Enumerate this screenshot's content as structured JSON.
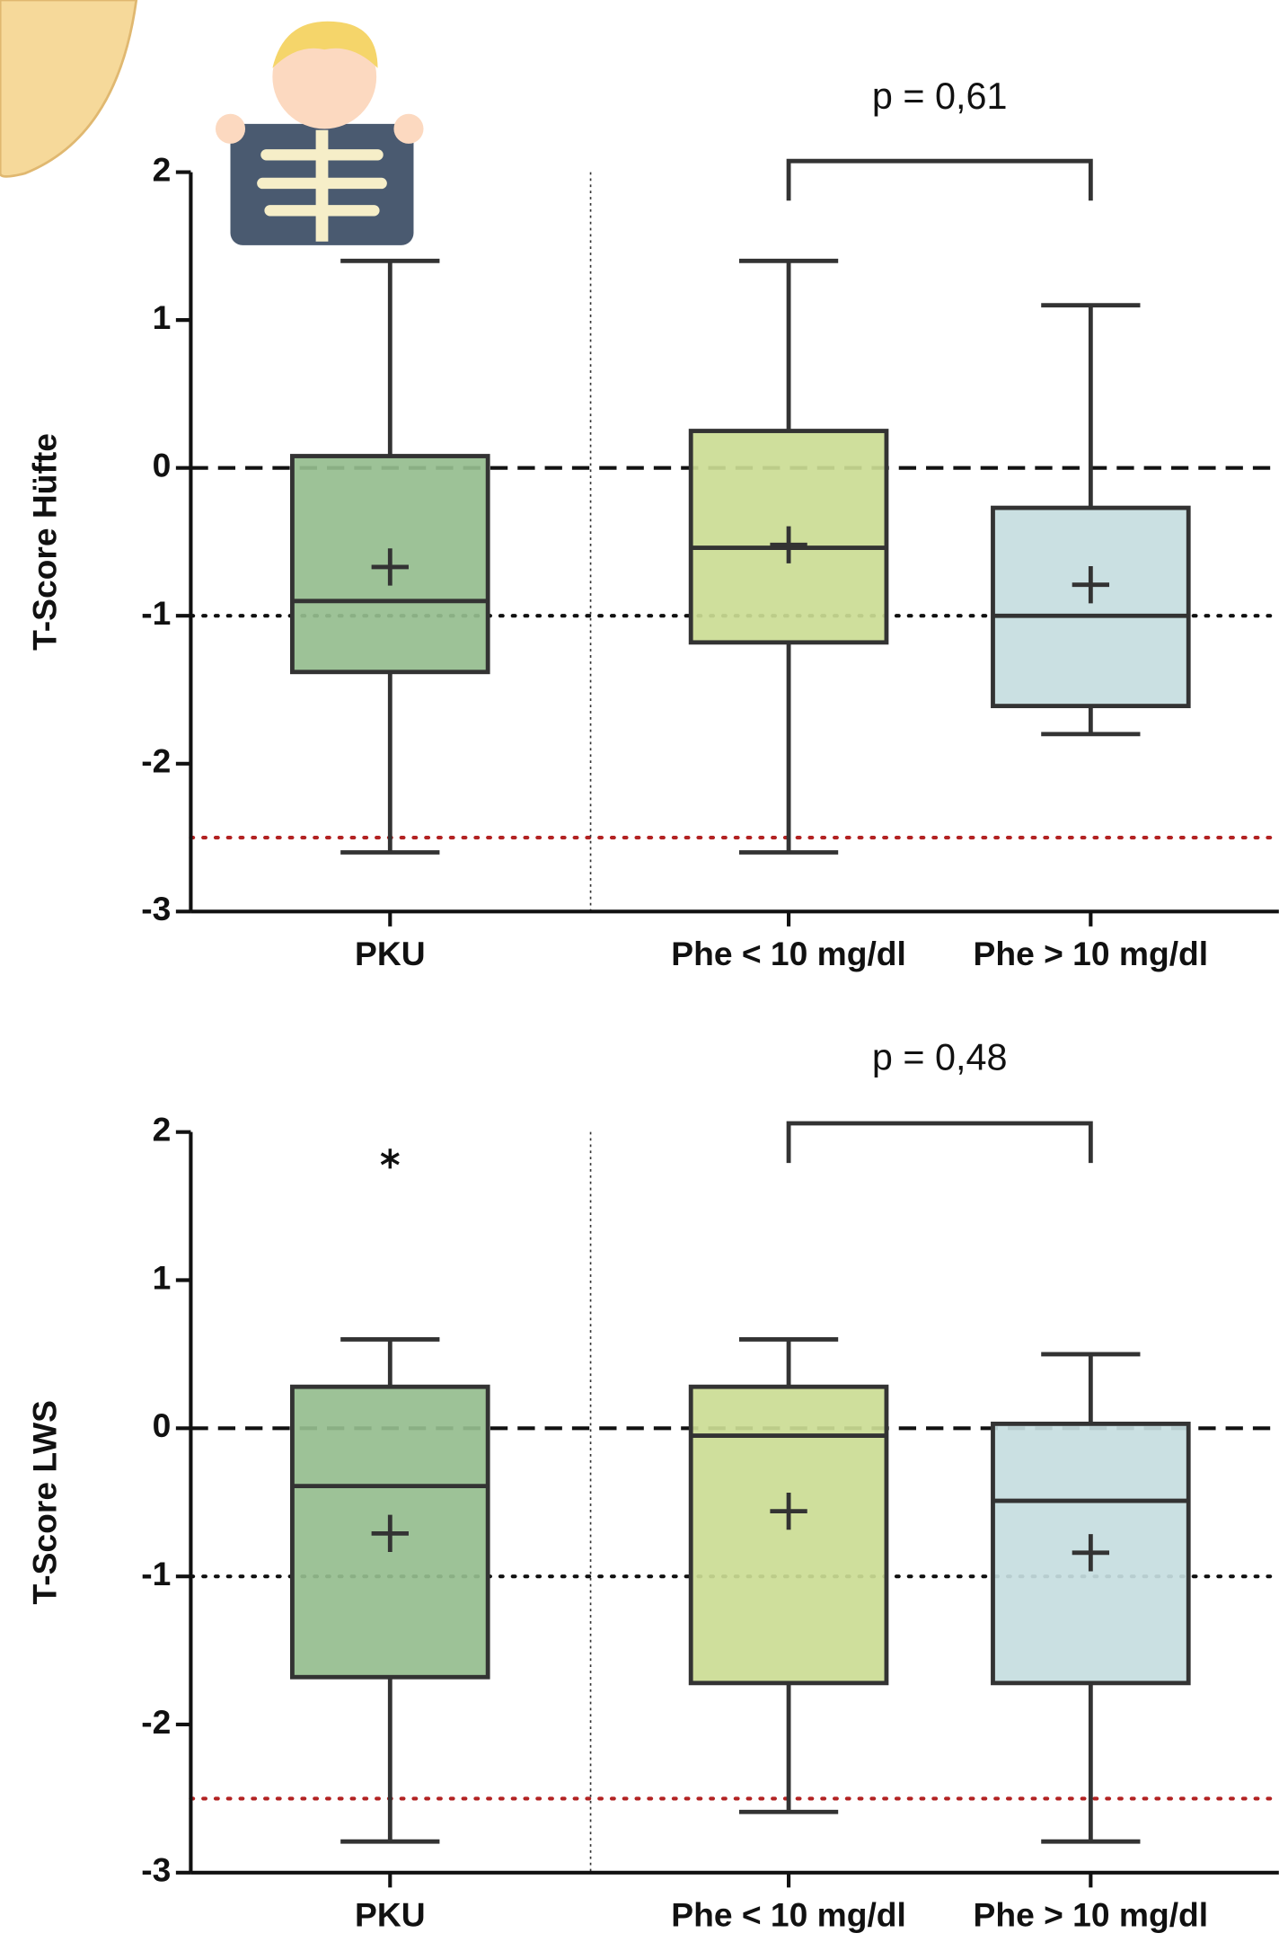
{
  "chart_data": [
    {
      "type": "box",
      "ylabel": "T-Score Hüfte",
      "annotation": "p = 0,61",
      "categories": [
        "PKU",
        "Phe < 10 mg/dl",
        "Phe > 10 mg/dl"
      ],
      "boxes": [
        {
          "min": -2.6,
          "q1": -1.38,
          "median": -0.9,
          "q3": 0.08,
          "max": 1.4,
          "mean": -0.67,
          "color": "#95bd8e"
        },
        {
          "min": -2.6,
          "q1": -1.18,
          "median": -0.54,
          "q3": 0.25,
          "max": 1.4,
          "mean": -0.52,
          "color": "#cbdc94"
        },
        {
          "min": -1.8,
          "q1": -1.61,
          "median": -1.0,
          "q3": -0.27,
          "max": 1.1,
          "mean": -0.79,
          "color": "#c5dde0"
        }
      ],
      "ylim": [
        -3,
        2
      ],
      "yticks": [
        -3,
        -2,
        -1,
        0,
        1,
        2
      ],
      "reference_lines": [
        {
          "value": 0,
          "color": "#111",
          "style": "dashed"
        },
        {
          "value": -1,
          "color": "#111",
          "style": "dotted"
        },
        {
          "value": -2.5,
          "color": "#b22222",
          "style": "dotted"
        }
      ]
    },
    {
      "type": "box",
      "ylabel": "T-Score LWS",
      "annotation": "p = 0,48",
      "categories": [
        "PKU",
        "Phe < 10 mg/dl",
        "Phe > 10 mg/dl"
      ],
      "boxes": [
        {
          "min": -2.79,
          "q1": -1.68,
          "median": -0.39,
          "q3": 0.28,
          "max": 0.6,
          "mean": -0.71,
          "color": "#95bd8e",
          "outliers": [
            1.82
          ]
        },
        {
          "min": -2.59,
          "q1": -1.72,
          "median": -0.05,
          "q3": 0.28,
          "max": 0.6,
          "mean": -0.56,
          "color": "#cbdc94"
        },
        {
          "min": -2.79,
          "q1": -1.72,
          "median": -0.49,
          "q3": 0.03,
          "max": 0.5,
          "mean": -0.84,
          "color": "#c5dde0"
        }
      ],
      "ylim": [
        -3,
        2
      ],
      "yticks": [
        -3,
        -2,
        -1,
        0,
        1,
        2
      ],
      "reference_lines": [
        {
          "value": 0,
          "color": "#111",
          "style": "dashed"
        },
        {
          "value": -1,
          "color": "#111",
          "style": "dotted"
        },
        {
          "value": -2.5,
          "color": "#b22222",
          "style": "dotted"
        }
      ]
    }
  ]
}
